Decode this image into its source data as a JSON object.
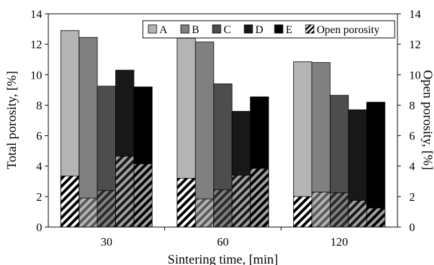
{
  "chart_data": {
    "type": "bar",
    "categories": [
      "30",
      "60",
      "120"
    ],
    "series": [
      {
        "name": "A",
        "total": [
          12.9,
          12.4,
          10.85
        ],
        "open": [
          3.35,
          3.2,
          2.0
        ],
        "color": "#b4b4b4",
        "stripe": "#ffffff"
      },
      {
        "name": "B",
        "total": [
          12.45,
          12.15,
          10.8
        ],
        "open": [
          1.9,
          1.85,
          2.3
        ],
        "color": "#808080",
        "stripe": "#b4b4b4"
      },
      {
        "name": "C",
        "total": [
          9.25,
          9.4,
          8.65
        ],
        "open": [
          2.4,
          2.45,
          2.25
        ],
        "color": "#4d4d4d",
        "stripe": "#808080"
      },
      {
        "name": "D",
        "total": [
          10.3,
          7.6,
          7.7
        ],
        "open": [
          4.65,
          3.4,
          1.75
        ],
        "color": "#181818",
        "stripe": "#9a9a9a"
      },
      {
        "name": "E",
        "total": [
          9.2,
          8.55,
          8.2
        ],
        "open": [
          4.15,
          3.85,
          1.25
        ],
        "color": "#000000",
        "stripe": "#9a9a9a"
      }
    ],
    "open_porosity_legend": "Open porosity",
    "xlabel": "Sintering time, [min]",
    "ylabel_left": "Total porosity, [%]",
    "ylabel_right": "Open porosity, [%]",
    "ylim": [
      0,
      14
    ],
    "yticks": [
      0,
      2,
      4,
      6,
      8,
      10,
      12,
      14
    ],
    "legend_position": "top-right",
    "grid": false
  }
}
